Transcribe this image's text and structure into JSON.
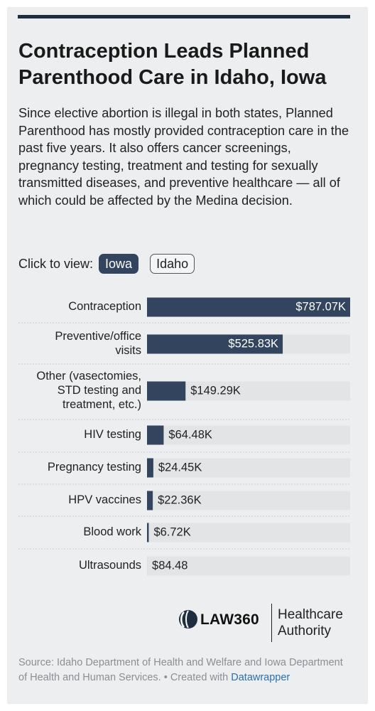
{
  "title": "Contraception Leads Planned Parenthood Care in Idaho, Iowa",
  "description": "Since elective abortion is illegal in both states, Planned Parenthood has mostly provided contraception care in the past five years. It also offers cancer screenings, pregnancy testing, treatment and testing for sexually transmitted diseases, and preventive healthcare — all of which could be affected by the Medina decision.",
  "toggle": {
    "label": "Click to view:",
    "options": [
      "Iowa",
      "Idaho"
    ],
    "selected": "Iowa"
  },
  "colors": {
    "bar": "#32445e",
    "track": "#e2e4e6",
    "accent_blue": "#2a6fb0"
  },
  "chart_data": {
    "type": "bar",
    "orientation": "horizontal",
    "categories": [
      [
        "Contraception"
      ],
      [
        "Preventive/office",
        "visits"
      ],
      [
        "Other (vasectomies,",
        "STD testing and",
        "treatment, etc.)"
      ],
      [
        "HIV testing"
      ],
      [
        "Pregnancy testing"
      ],
      [
        "HPV vaccines"
      ],
      [
        "Blood work"
      ],
      [
        "Ultrasounds"
      ]
    ],
    "values": [
      787070,
      525830,
      149290,
      64480,
      24450,
      22360,
      6720,
      84.48
    ],
    "labels": [
      "$787.07K",
      "$525.83K",
      "$149.29K",
      "$64.48K",
      "$24.45K",
      "$22.36K",
      "$6.72K",
      "$84.48"
    ],
    "max": 787070
  },
  "logo": {
    "brand": "LAW360",
    "sub_line1": "Healthcare",
    "sub_line2": "Authority"
  },
  "source": {
    "text": "Source: Idaho Department of Health and Welfare and Iowa Department of Health and Human Services. • Created with",
    "link": "Datawrapper"
  }
}
